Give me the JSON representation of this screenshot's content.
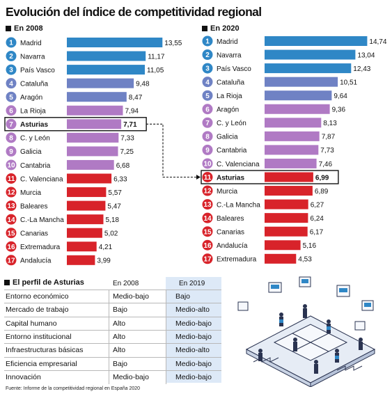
{
  "title": "Evolución del índice de competitividad regional",
  "source": "Fuente: Informe de la competitividad regional en España 2020",
  "colors": {
    "blue": "#2f87c6",
    "steel": "#6f82c4",
    "violet": "#b07ac4",
    "red": "#d8232a",
    "table_highlight": "#dde9f7"
  },
  "chart_data": [
    {
      "type": "bar",
      "title": "En 2008",
      "orientation": "horizontal",
      "categories": [
        "Madrid",
        "Navarra",
        "País Vasco",
        "Cataluña",
        "Aragón",
        "La Rioja",
        "Asturias",
        "C. y León",
        "Galicia",
        "Cantabria",
        "C. Valenciana",
        "Murcia",
        "Baleares",
        "C.-La Mancha",
        "Canarias",
        "Extremadura",
        "Andalucía"
      ],
      "ranks": [
        "1",
        "2",
        "3",
        "4",
        "5",
        "6",
        "7",
        "8",
        "9",
        "10",
        "11",
        "12",
        "13",
        "14",
        "15",
        "16",
        "17"
      ],
      "values": [
        13.55,
        11.17,
        11.05,
        9.48,
        8.47,
        7.94,
        7.71,
        7.33,
        7.25,
        6.68,
        6.33,
        5.57,
        5.47,
        5.18,
        5.02,
        4.21,
        3.99
      ],
      "value_labels": [
        "13,55",
        "11,17",
        "11,05",
        "9,48",
        "8,47",
        "7,94",
        "7,71",
        "7,33",
        "7,25",
        "6,68",
        "6,33",
        "5,57",
        "5,47",
        "5,18",
        "5,02",
        "4,21",
        "3,99"
      ],
      "color_groups": [
        "blue",
        "blue",
        "blue",
        "steel",
        "steel",
        "violet",
        "violet",
        "violet",
        "violet",
        "violet",
        "red",
        "red",
        "red",
        "red",
        "red",
        "red",
        "red"
      ],
      "highlight": "Asturias",
      "xlim": [
        0,
        15
      ]
    },
    {
      "type": "bar",
      "title": "En 2020",
      "orientation": "horizontal",
      "categories": [
        "Madrid",
        "Navarra",
        "País Vasco",
        "Cataluña",
        "La Rioja",
        "Aragón",
        "C. y León",
        "Galicia",
        "Cantabria",
        "C. Valenciana",
        "Asturias",
        "Murcia",
        "C.-La Mancha",
        "Baleares",
        "Canarias",
        "Andalucía",
        "Extremadura"
      ],
      "ranks": [
        "1",
        "2",
        "3",
        "4",
        "5",
        "6",
        "7",
        "8",
        "9",
        "10",
        "11",
        "12",
        "13",
        "14",
        "15",
        "16",
        "17"
      ],
      "values": [
        14.74,
        13.04,
        12.43,
        10.51,
        9.64,
        9.36,
        8.13,
        7.87,
        7.73,
        7.46,
        6.99,
        6.89,
        6.27,
        6.24,
        6.17,
        5.16,
        4.53
      ],
      "value_labels": [
        "14,74",
        "13,04",
        "12,43",
        "10,51",
        "9,64",
        "9,36",
        "8,13",
        "7,87",
        "7,73",
        "7,46",
        "6,99",
        "6,89",
        "6,27",
        "6,24",
        "6,17",
        "5,16",
        "4,53"
      ],
      "color_groups": [
        "blue",
        "blue",
        "blue",
        "steel",
        "steel",
        "violet",
        "violet",
        "violet",
        "violet",
        "violet",
        "red",
        "red",
        "red",
        "red",
        "red",
        "red",
        "red"
      ],
      "highlight": "Asturias",
      "xlim": [
        0,
        15
      ]
    },
    {
      "type": "table",
      "title": "El perfil de Asturias",
      "columns": [
        "",
        "En 2008",
        "En 2019"
      ],
      "rows": [
        [
          "Entorno económico",
          "Medio-bajo",
          "Bajo"
        ],
        [
          "Mercado de trabajo",
          "Bajo",
          "Medio-alto"
        ],
        [
          "Capital humano",
          "Alto",
          "Medio-bajo"
        ],
        [
          "Entorno institucional",
          "Alto",
          "Medio-bajo"
        ],
        [
          "Infraestructuras básicas",
          "Alto",
          "Medio-alto"
        ],
        [
          "Eficiencia empresarial",
          "Bajo",
          "Medio-bajo"
        ],
        [
          "Innovación",
          "Medio-bajo",
          "Medio-bajo"
        ]
      ]
    }
  ]
}
